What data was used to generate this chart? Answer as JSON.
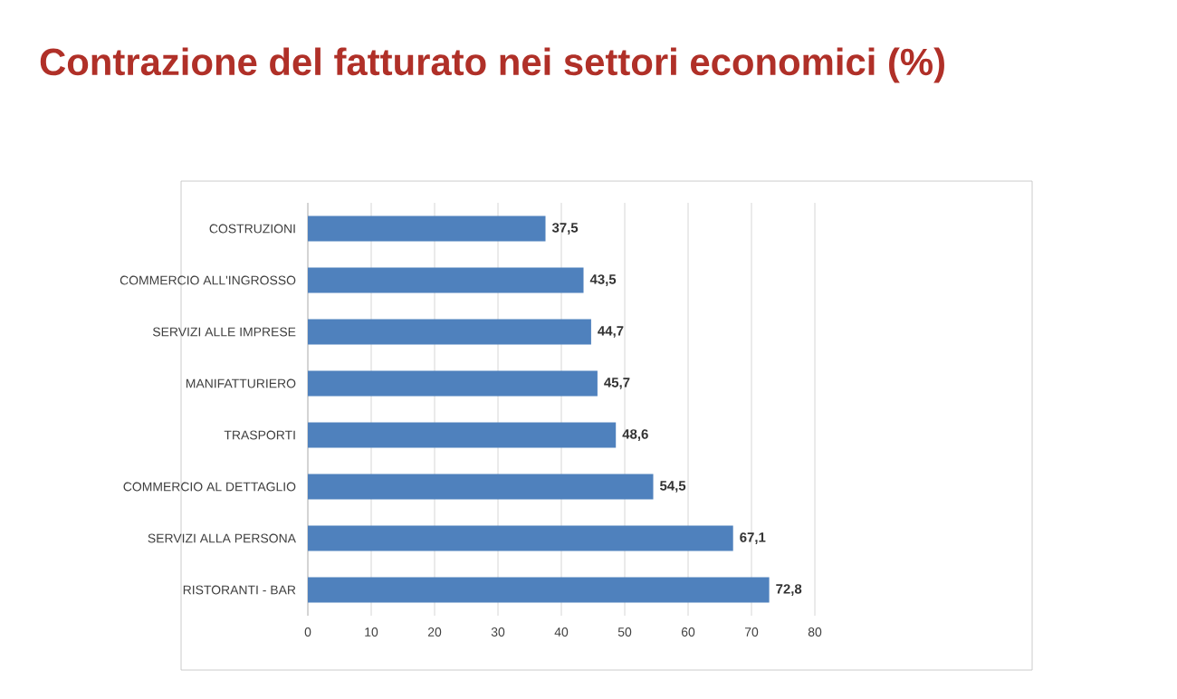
{
  "chart_data": {
    "type": "bar",
    "orientation": "horizontal",
    "title": "Contrazione del fatturato nei settori economici (%)",
    "categories": [
      "COSTRUZIONI",
      "COMMERCIO ALL'INGROSSO",
      "SERVIZI ALLE IMPRESE",
      "MANIFATTURIERO",
      "TRASPORTI",
      "COMMERCIO AL DETTAGLIO",
      "SERVIZI ALLA PERSONA",
      "RISTORANTI - BAR"
    ],
    "values": [
      37.5,
      43.5,
      44.7,
      45.7,
      48.6,
      54.5,
      67.1,
      72.8
    ],
    "value_labels": [
      "37,5",
      "43,5",
      "44,7",
      "45,7",
      "48,6",
      "54,5",
      "67,1",
      "72,8"
    ],
    "color": "#4f81bd",
    "xlim": [
      0,
      80
    ],
    "xticks": [
      0,
      10,
      20,
      30,
      40,
      50,
      60,
      70,
      80
    ],
    "grid": "x"
  }
}
